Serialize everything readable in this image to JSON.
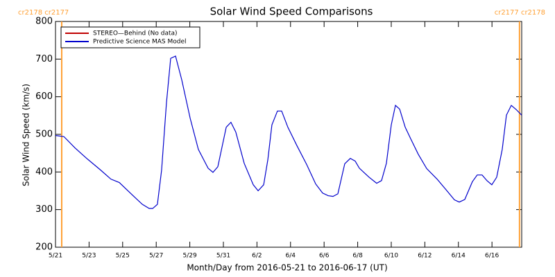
{
  "chart_data": {
    "type": "line",
    "title": "Solar Wind Speed Comparisons",
    "x_label": "Month/Day from 2016-05-21 to 2016-06-17 (UT)",
    "y_label": "Solar Wind Speed (km/s)",
    "xlim": [
      0,
      27.77
    ],
    "xticks": [
      {
        "value": 0,
        "label": "5/21"
      },
      {
        "value": 2,
        "label": "5/23"
      },
      {
        "value": 4,
        "label": "5/25"
      },
      {
        "value": 6,
        "label": "5/27"
      },
      {
        "value": 8,
        "label": "5/29"
      },
      {
        "value": 10,
        "label": "5/31"
      },
      {
        "value": 12,
        "label": "6/2"
      },
      {
        "value": 14,
        "label": "6/4"
      },
      {
        "value": 16,
        "label": "6/6"
      },
      {
        "value": 18,
        "label": "6/8"
      },
      {
        "value": 20,
        "label": "6/10"
      },
      {
        "value": 22,
        "label": "6/12"
      },
      {
        "value": 24,
        "label": "6/14"
      },
      {
        "value": 26,
        "label": "6/16"
      }
    ],
    "ylim": [
      200,
      800
    ],
    "yticks": [
      200,
      300,
      400,
      500,
      600,
      700,
      800
    ],
    "legend": "upper left",
    "annotations": [
      {
        "x": 0.37,
        "label": "cr2178 cr2177",
        "color": "#ffa033"
      },
      {
        "x": 27.64,
        "label": "cr2177 cr2178",
        "color": "#ffa033"
      }
    ],
    "x": [
      0,
      0.5,
      1.16,
      1.86,
      2.69,
      3.3,
      3.8,
      4.55,
      5.17,
      5.58,
      5.79,
      6.07,
      6.32,
      6.61,
      6.86,
      7.15,
      7.52,
      8.02,
      8.51,
      9.09,
      9.38,
      9.67,
      10.17,
      10.45,
      10.74,
      11.24,
      11.78,
      12.07,
      12.4,
      12.65,
      12.89,
      13.22,
      13.47,
      13.84,
      14.38,
      14.96,
      15.5,
      15.91,
      16.24,
      16.53,
      16.82,
      17.23,
      17.56,
      17.85,
      18.1,
      18.68,
      19.13,
      19.42,
      19.71,
      20.0,
      20.25,
      20.5,
      20.83,
      21.16,
      21.61,
      22.11,
      22.73,
      23.26,
      23.76,
      24.05,
      24.38,
      24.83,
      25.12,
      25.41,
      25.7,
      25.99,
      26.28,
      26.61,
      26.86,
      27.15,
      27.44,
      27.77
    ],
    "series": [
      {
        "name": "STEREO—Behind (No data)",
        "color": "#c00000"
      },
      {
        "name": "Predictive Science MAS Model",
        "color": "#0000cc",
        "values": [
          497,
          494,
          464,
          436,
          405,
          381,
          372,
          340,
          314,
          303,
          303,
          314,
          405,
          584,
          702,
          708,
          645,
          543,
          460,
          410,
          399,
          414,
          519,
          532,
          506,
          423,
          366,
          350,
          366,
          433,
          525,
          562,
          562,
          519,
          470,
          420,
          368,
          344,
          337,
          335,
          342,
          422,
          436,
          429,
          410,
          386,
          370,
          377,
          423,
          525,
          577,
          567,
          519,
          488,
          447,
          409,
          381,
          353,
          326,
          320,
          327,
          374,
          392,
          392,
          377,
          366,
          386,
          460,
          551,
          577,
          566,
          551
        ]
      }
    ]
  }
}
